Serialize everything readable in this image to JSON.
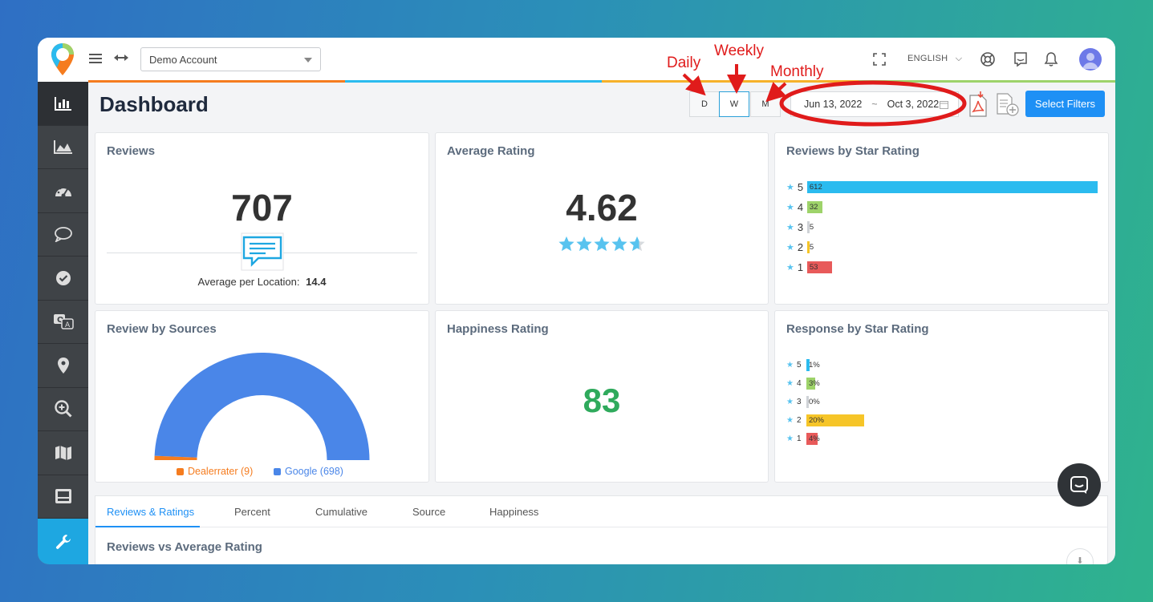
{
  "header": {
    "account_select": "Demo Account",
    "language": "ENGLISH",
    "page_title": "Dashboard"
  },
  "period": {
    "daily": "D",
    "weekly": "W",
    "monthly": "M",
    "active": "W"
  },
  "date_range": {
    "start": "Jun 13, 2022",
    "separator": "~",
    "end": "Oct 3, 2022"
  },
  "filters_button": "Select Filters",
  "annotations": {
    "daily": "Daily",
    "weekly": "Weekly",
    "monthly": "Monthly"
  },
  "cards": {
    "reviews": {
      "title": "Reviews",
      "value": "707",
      "avg_label": "Average per Location:",
      "avg_value": "14.4"
    },
    "average_rating": {
      "title": "Average Rating",
      "value": "4.62",
      "stars": 4.62
    },
    "reviews_by_star": {
      "title": "Reviews by Star Rating",
      "rows": [
        {
          "star": "5",
          "count": 612,
          "label": "612",
          "color": "#2bbbef"
        },
        {
          "star": "4",
          "count": 32,
          "label": "32",
          "color": "#9ed36a"
        },
        {
          "star": "3",
          "count": 5,
          "label": "5",
          "color": "#cfd2d6"
        },
        {
          "star": "2",
          "count": 5,
          "label": "5",
          "color": "#f6c528"
        },
        {
          "star": "1",
          "count": 53,
          "label": "53",
          "color": "#e85a5a"
        }
      ]
    },
    "review_sources": {
      "title": "Review by Sources",
      "sources": [
        {
          "name": "Dealerrater (9)",
          "value": 9,
          "color": "#f57c1f"
        },
        {
          "name": "Google (698)",
          "value": 698,
          "color": "#4a86e8"
        }
      ]
    },
    "happiness": {
      "title": "Happiness Rating",
      "value": "83",
      "color": "#2faa5c"
    },
    "response_by_star": {
      "title": "Response by Star Rating",
      "rows": [
        {
          "star": "5",
          "percent": 1,
          "label": "1%",
          "color": "#2bbbef"
        },
        {
          "star": "4",
          "percent": 3,
          "label": "3%",
          "color": "#9ed36a"
        },
        {
          "star": "3",
          "percent": 0,
          "label": "0%",
          "color": "#cfd2d6"
        },
        {
          "star": "2",
          "percent": 20,
          "label": "20%",
          "color": "#f6c528"
        },
        {
          "star": "1",
          "percent": 4,
          "label": "4%",
          "color": "#e85a5a"
        }
      ]
    }
  },
  "tabs": [
    "Reviews & Ratings",
    "Percent",
    "Cumulative",
    "Source",
    "Happiness"
  ],
  "active_tab": "Reviews & Ratings",
  "lower_section_title": "Reviews vs Average Rating",
  "colors": {
    "accent": "#1e90f5",
    "sidebar": "#3f4347",
    "sidebar_tool": "#1ea7e1",
    "star": "#58c3ef"
  }
}
